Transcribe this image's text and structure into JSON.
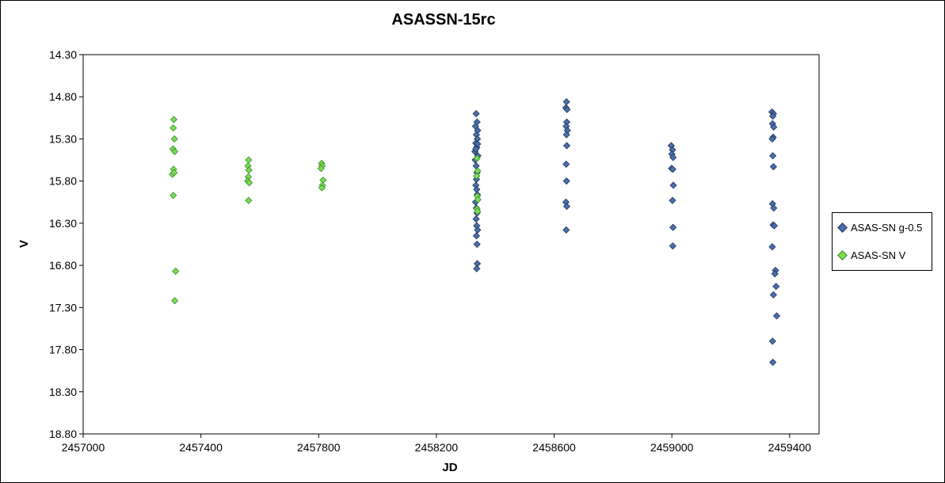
{
  "chart_data": {
    "type": "scatter",
    "title": "ASASSN-15rc",
    "xlabel": "JD",
    "ylabel": "V",
    "xlim": [
      2457000,
      2459500
    ],
    "ylim": [
      18.8,
      14.3
    ],
    "y_inverted": true,
    "x_ticks": [
      2457000,
      2457400,
      2457800,
      2458200,
      2458600,
      2459000,
      2459400
    ],
    "x_tick_labels": [
      "2457000",
      "2457400",
      "2457800",
      "2458200",
      "2458600",
      "2459000",
      "2459400"
    ],
    "y_ticks": [
      14.3,
      14.8,
      15.3,
      15.8,
      16.3,
      16.8,
      17.3,
      17.8,
      18.3,
      18.8
    ],
    "y_tick_labels": [
      "14.30",
      "14.80",
      "15.30",
      "15.80",
      "16.30",
      "16.80",
      "17.30",
      "17.80",
      "18.30",
      "18.80"
    ],
    "grid": false,
    "legend_position": "right",
    "series": [
      {
        "name": "ASAS-SN g-0.5",
        "color": "#4a6fae",
        "stroke": "#1f3355",
        "points": [
          [
            2458335,
            15.0
          ],
          [
            2458338,
            15.1
          ],
          [
            2458333,
            15.15
          ],
          [
            2458340,
            15.2
          ],
          [
            2458336,
            15.25
          ],
          [
            2458339,
            15.3
          ],
          [
            2458334,
            15.35
          ],
          [
            2458337,
            15.4
          ],
          [
            2458331,
            15.45
          ],
          [
            2458341,
            15.5
          ],
          [
            2458332,
            15.55
          ],
          [
            2458335,
            15.62
          ],
          [
            2458338,
            15.7
          ],
          [
            2458336,
            15.78
          ],
          [
            2458334,
            15.85
          ],
          [
            2458337,
            15.9
          ],
          [
            2458339,
            15.96
          ],
          [
            2458333,
            16.05
          ],
          [
            2458336,
            16.12
          ],
          [
            2458338,
            16.18
          ],
          [
            2458335,
            16.25
          ],
          [
            2458337,
            16.33
          ],
          [
            2458340,
            16.38
          ],
          [
            2458336,
            16.45
          ],
          [
            2458338,
            16.55
          ],
          [
            2458339,
            16.78
          ],
          [
            2458337,
            16.84
          ],
          [
            2458334,
            15.42
          ],
          [
            2458340,
            15.36
          ],
          [
            2458642,
            14.86
          ],
          [
            2458640,
            14.93
          ],
          [
            2458644,
            14.95
          ],
          [
            2458643,
            15.1
          ],
          [
            2458641,
            15.15
          ],
          [
            2458645,
            15.2
          ],
          [
            2458642,
            15.25
          ],
          [
            2458643,
            15.38
          ],
          [
            2458641,
            15.6
          ],
          [
            2458642,
            15.8
          ],
          [
            2458640,
            16.05
          ],
          [
            2458643,
            16.1
          ],
          [
            2458641,
            16.38
          ],
          [
            2458998,
            15.38
          ],
          [
            2459002,
            15.43
          ],
          [
            2459000,
            15.48
          ],
          [
            2459004,
            15.52
          ],
          [
            2458999,
            15.65
          ],
          [
            2459003,
            15.66
          ],
          [
            2459005,
            15.85
          ],
          [
            2459002,
            16.03
          ],
          [
            2459004,
            16.35
          ],
          [
            2459003,
            16.57
          ],
          [
            2459340,
            14.98
          ],
          [
            2459345,
            15.0
          ],
          [
            2459343,
            15.03
          ],
          [
            2459342,
            15.12
          ],
          [
            2459346,
            15.16
          ],
          [
            2459344,
            15.28
          ],
          [
            2459341,
            15.3
          ],
          [
            2459343,
            15.5
          ],
          [
            2459345,
            15.63
          ],
          [
            2459342,
            16.07
          ],
          [
            2459346,
            16.12
          ],
          [
            2459344,
            16.32
          ],
          [
            2459348,
            16.33
          ],
          [
            2459341,
            16.58
          ],
          [
            2459352,
            16.86
          ],
          [
            2459350,
            16.9
          ],
          [
            2459354,
            17.05
          ],
          [
            2459345,
            17.15
          ],
          [
            2459356,
            17.4
          ],
          [
            2459342,
            17.7
          ],
          [
            2459343,
            17.95
          ]
        ]
      },
      {
        "name": "ASAS-SN V",
        "color": "#77dd55",
        "stroke": "#3f8a2a",
        "points": [
          [
            2457308,
            15.07
          ],
          [
            2457306,
            15.17
          ],
          [
            2457310,
            15.3
          ],
          [
            2457305,
            15.42
          ],
          [
            2457311,
            15.45
          ],
          [
            2457307,
            15.66
          ],
          [
            2457303,
            15.72
          ],
          [
            2457309,
            15.7
          ],
          [
            2457306,
            15.97
          ],
          [
            2457314,
            16.87
          ],
          [
            2457311,
            17.22
          ],
          [
            2457562,
            15.55
          ],
          [
            2457560,
            15.62
          ],
          [
            2457563,
            15.67
          ],
          [
            2457561,
            15.75
          ],
          [
            2457559,
            15.8
          ],
          [
            2457564,
            15.82
          ],
          [
            2457562,
            16.03
          ],
          [
            2457810,
            15.59
          ],
          [
            2457812,
            15.62
          ],
          [
            2457808,
            15.65
          ],
          [
            2457815,
            15.79
          ],
          [
            2457813,
            15.85
          ],
          [
            2457811,
            15.88
          ],
          [
            2458338,
            15.53
          ],
          [
            2458340,
            15.68
          ],
          [
            2458337,
            15.74
          ],
          [
            2458339,
            15.98
          ],
          [
            2458341,
            16.02
          ],
          [
            2458338,
            16.13
          ],
          [
            2458340,
            16.16
          ]
        ]
      }
    ]
  }
}
